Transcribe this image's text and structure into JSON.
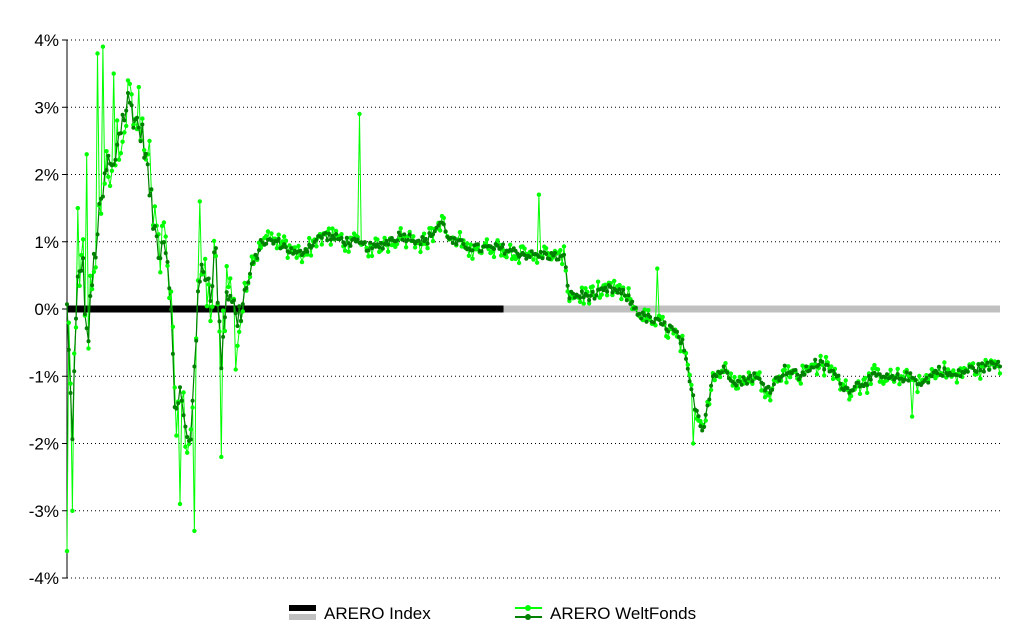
{
  "chart_data": {
    "type": "line",
    "title": "",
    "xlabel": "",
    "ylabel": "",
    "ylim": [
      -4,
      4
    ],
    "y_ticks": [
      {
        "value": 4,
        "label": "4%"
      },
      {
        "value": 3,
        "label": "3%"
      },
      {
        "value": 2,
        "label": "2%"
      },
      {
        "value": 1,
        "label": "1%"
      },
      {
        "value": 0,
        "label": "0%"
      },
      {
        "value": -1,
        "label": "-1%"
      },
      {
        "value": -2,
        "label": "-2%"
      },
      {
        "value": -3,
        "label": "-3%"
      },
      {
        "value": -4,
        "label": "-4%"
      }
    ],
    "grid": "horizontal dotted",
    "legend": "bottom",
    "series": [
      {
        "name": "ARERO Index",
        "colors": {
          "first_segment": "#000000",
          "second_segment": "#c0c0c0"
        },
        "values": [
          0,
          0,
          0
        ]
      },
      {
        "name": "ARERO WeltFonds",
        "colors": {
          "line": "#00ff00",
          "markers": "#008000"
        },
        "trend": [
          [
            0,
            0.0
          ],
          [
            1,
            -1.9
          ],
          [
            2,
            0.3
          ],
          [
            3,
            0.8
          ],
          [
            4,
            -0.6
          ],
          [
            5,
            0.5
          ],
          [
            6,
            1.2
          ],
          [
            8,
            2.2
          ],
          [
            9,
            2.0
          ],
          [
            10,
            2.6
          ],
          [
            12,
            3.1
          ],
          [
            13,
            2.9
          ],
          [
            15,
            2.5
          ],
          [
            17,
            1.2
          ],
          [
            18,
            0.9
          ],
          [
            19,
            1.1
          ],
          [
            20,
            0.5
          ],
          [
            21,
            -1.5
          ],
          [
            22,
            -1.2
          ],
          [
            23,
            -1.8
          ],
          [
            24,
            -2.1
          ],
          [
            25,
            -0.5
          ],
          [
            26,
            0.5
          ],
          [
            27,
            0.6
          ],
          [
            28,
            0.3
          ],
          [
            29,
            0.9
          ],
          [
            30,
            -0.8
          ],
          [
            31,
            0.2
          ],
          [
            32,
            0.3
          ],
          [
            33,
            -0.2
          ],
          [
            34,
            0.0
          ],
          [
            36,
            0.6
          ],
          [
            38,
            1.0
          ],
          [
            41,
            1.0
          ],
          [
            45,
            0.8
          ],
          [
            50,
            1.1
          ],
          [
            55,
            1.0
          ],
          [
            60,
            0.9
          ],
          [
            65,
            1.1
          ],
          [
            70,
            1.0
          ],
          [
            73,
            1.3
          ],
          [
            75,
            1.0
          ],
          [
            80,
            0.9
          ],
          [
            85,
            0.9
          ],
          [
            90,
            0.8
          ],
          [
            94,
            0.8
          ],
          [
            97,
            0.75
          ],
          [
            98,
            0.2
          ],
          [
            100,
            0.2
          ],
          [
            103,
            0.2
          ],
          [
            106,
            0.3
          ],
          [
            109,
            0.2
          ],
          [
            112,
            -0.1
          ],
          [
            115,
            -0.2
          ],
          [
            118,
            -0.3
          ],
          [
            120,
            -0.5
          ],
          [
            122,
            -1.3
          ],
          [
            124,
            -1.8
          ],
          [
            126,
            -1.0
          ],
          [
            128,
            -0.9
          ],
          [
            131,
            -1.1
          ],
          [
            134,
            -1.0
          ],
          [
            137,
            -1.2
          ],
          [
            140,
            -0.9
          ],
          [
            143,
            -1.0
          ],
          [
            146,
            -0.8
          ],
          [
            149,
            -0.9
          ],
          [
            152,
            -1.2
          ],
          [
            155,
            -1.1
          ],
          [
            158,
            -1.0
          ],
          [
            161,
            -1.05
          ],
          [
            164,
            -1.0
          ],
          [
            167,
            -1.1
          ],
          [
            170,
            -0.9
          ],
          [
            173,
            -1.0
          ],
          [
            176,
            -0.9
          ],
          [
            180,
            -0.85
          ],
          [
            182,
            -0.8
          ]
        ],
        "spikes": [
          [
            0,
            -3.6
          ],
          [
            1,
            -3.0
          ],
          [
            2,
            1.5
          ],
          [
            4,
            2.3
          ],
          [
            6,
            3.8
          ],
          [
            7,
            3.9
          ],
          [
            9,
            3.5
          ],
          [
            12,
            3.4
          ],
          [
            14,
            3.3
          ],
          [
            16,
            2.5
          ],
          [
            22,
            -2.9
          ],
          [
            25,
            -3.3
          ],
          [
            26,
            1.6
          ],
          [
            30,
            -2.2
          ],
          [
            33,
            -0.9
          ],
          [
            57,
            2.9
          ],
          [
            92,
            1.7
          ],
          [
            115,
            0.6
          ],
          [
            122,
            -2.0
          ],
          [
            165,
            -1.6
          ]
        ]
      }
    ]
  }
}
